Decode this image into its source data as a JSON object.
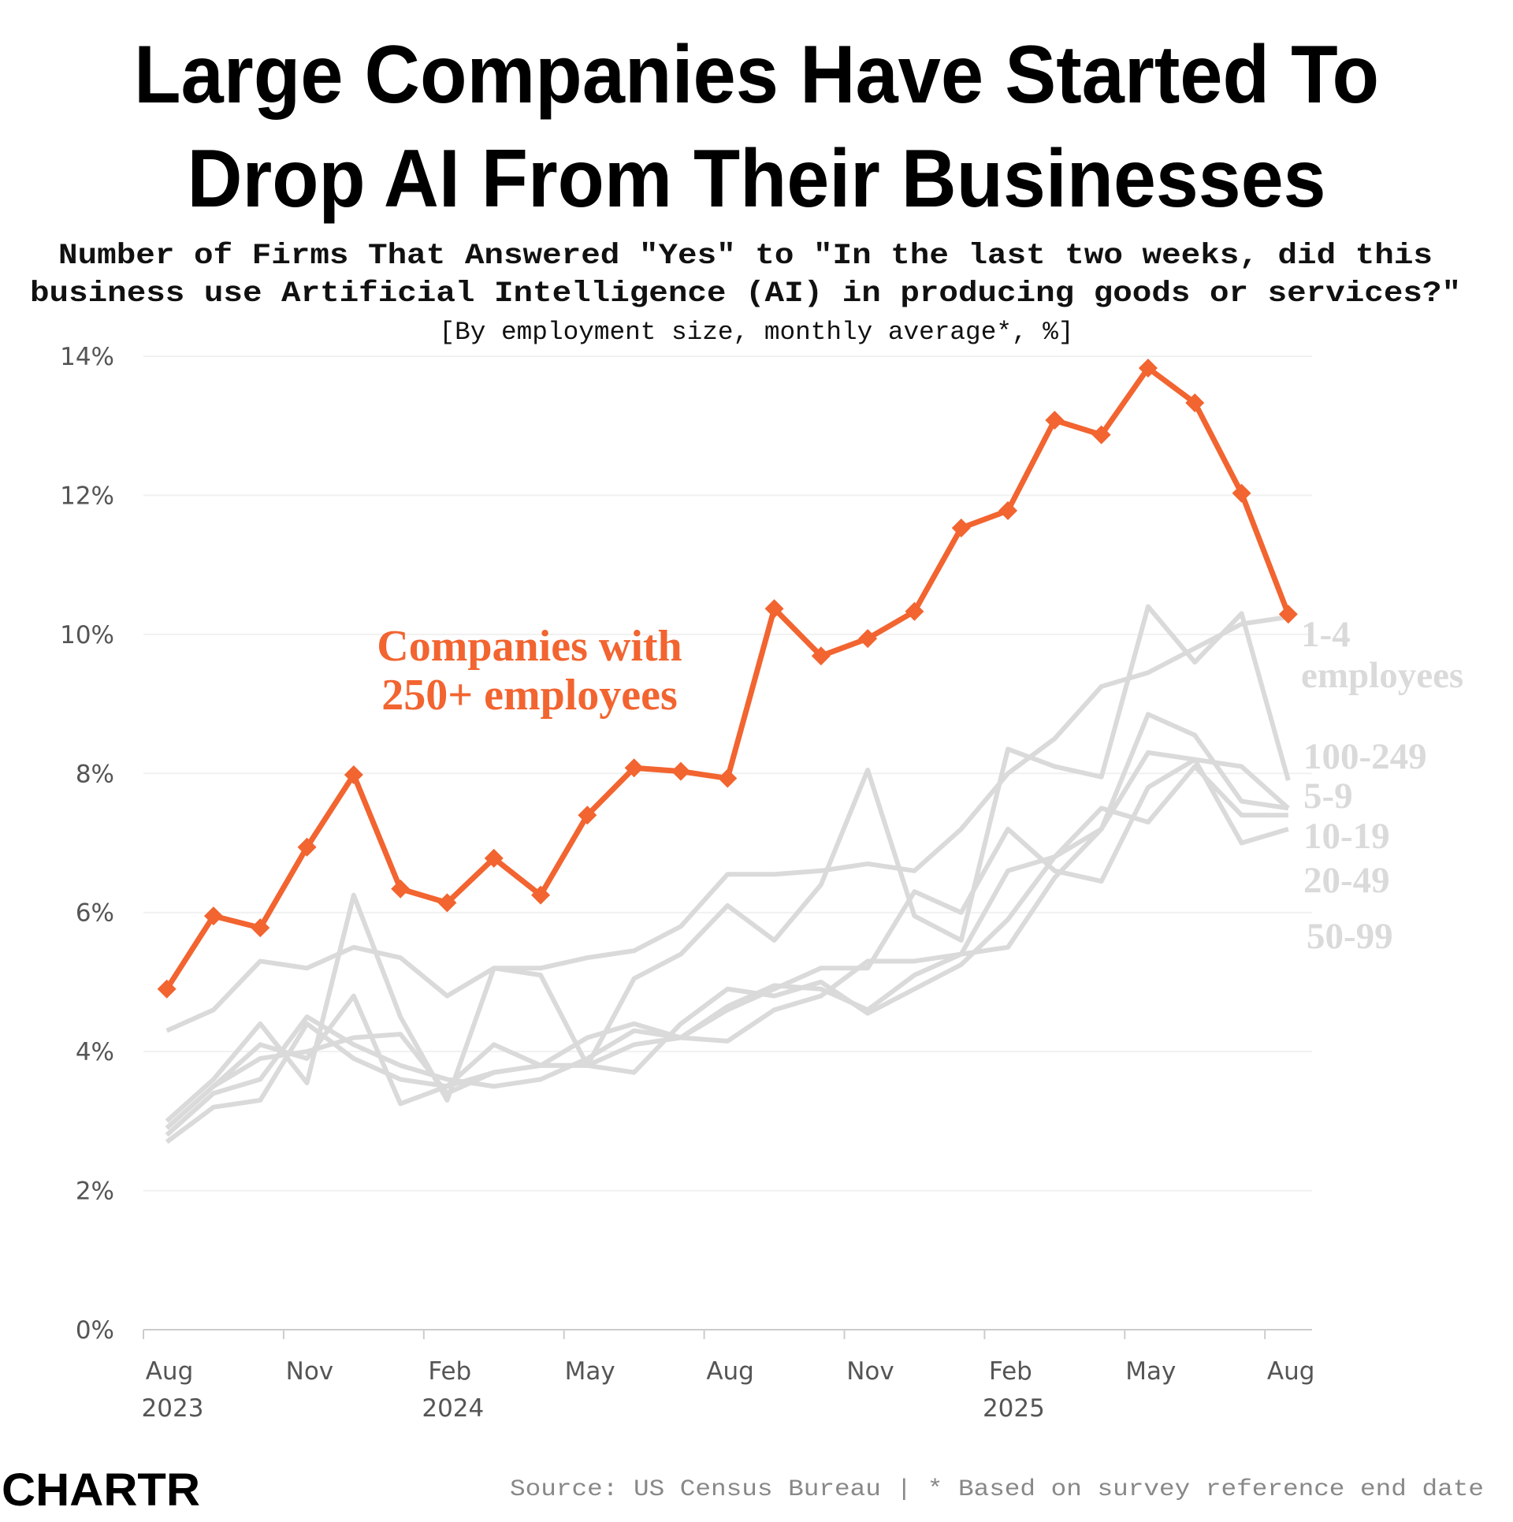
{
  "chart_data": {
    "type": "line",
    "title": [
      "Large Companies Have Started To",
      "Drop AI From Their Businesses"
    ],
    "subtitle": [
      "Number of Firms That Answered \"Yes\" to \"In the last two weeks, did this",
      "business use Artificial Intelligence (AI) in producing goods or services?\""
    ],
    "note": "[By employment size, monthly average*, %]",
    "source": "Source: US Census Bureau | * Based on survey reference end date",
    "logo": "CHARTR",
    "x": [
      "2023-08",
      "2023-09",
      "2023-10",
      "2023-11",
      "2023-12",
      "2024-01",
      "2024-02",
      "2024-03",
      "2024-04",
      "2024-05",
      "2024-06",
      "2024-07",
      "2024-08",
      "2024-09",
      "2024-10",
      "2024-11",
      "2024-12",
      "2025-01",
      "2025-02",
      "2025-03",
      "2025-04",
      "2025-05",
      "2025-06",
      "2025-07",
      "2025-08"
    ],
    "xticks": [
      {
        "value": "2023-08",
        "label": "Aug"
      },
      {
        "value": "2023-11",
        "label": "Nov"
      },
      {
        "value": "2024-02",
        "label": "Feb"
      },
      {
        "value": "2024-05",
        "label": "May"
      },
      {
        "value": "2024-08",
        "label": "Aug"
      },
      {
        "value": "2024-11",
        "label": "Nov"
      },
      {
        "value": "2025-02",
        "label": "Feb"
      },
      {
        "value": "2025-05",
        "label": "May"
      },
      {
        "value": "2025-08",
        "label": "Aug"
      }
    ],
    "xtick_years": [
      {
        "value": "2023-08",
        "label": "2023"
      },
      {
        "value": "2024-02",
        "label": "2024"
      },
      {
        "value": "2025-02",
        "label": "2025"
      }
    ],
    "ylim": [
      0,
      14
    ],
    "yticks": [
      {
        "value": 0,
        "label": "0%"
      },
      {
        "value": 2,
        "label": "2%"
      },
      {
        "value": 4,
        "label": "4%"
      },
      {
        "value": 6,
        "label": "6%"
      },
      {
        "value": 8,
        "label": "8%"
      },
      {
        "value": 10,
        "label": "10%"
      },
      {
        "value": 12,
        "label": "12%"
      },
      {
        "value": 14,
        "label": "14%"
      }
    ],
    "grid": true,
    "series": [
      {
        "name": "Companies with 250+ employees",
        "color": "#f26430",
        "marker": "diamond",
        "values": [
          4.9,
          5.95,
          5.78,
          6.94,
          7.98,
          6.34,
          6.14,
          6.78,
          6.25,
          7.4,
          8.08,
          8.03,
          7.93,
          10.37,
          9.69,
          9.94,
          10.33,
          11.53,
          11.78,
          13.08,
          12.87,
          13.83,
          13.33,
          12.03,
          10.29
        ]
      },
      {
        "name": "1-4 employees",
        "color": "#dadada",
        "values": [
          4.3,
          4.6,
          5.3,
          5.2,
          5.5,
          5.35,
          4.8,
          5.2,
          5.2,
          5.35,
          5.45,
          5.8,
          6.55,
          6.55,
          6.6,
          6.7,
          6.6,
          7.2,
          8.0,
          8.5,
          9.25,
          9.45,
          9.8,
          10.15,
          10.25
        ]
      },
      {
        "name": "100-249",
        "color": "#dadada",
        "values": [
          3.0,
          3.6,
          4.4,
          3.55,
          6.25,
          4.5,
          3.3,
          5.2,
          5.1,
          3.8,
          5.05,
          5.4,
          6.1,
          5.6,
          6.4,
          8.05,
          5.95,
          5.6,
          8.35,
          8.1,
          7.95,
          10.4,
          9.6,
          10.3,
          7.9
        ]
      },
      {
        "name": "5-9",
        "color": "#dadada",
        "values": [
          2.9,
          3.5,
          3.9,
          4.0,
          4.2,
          4.25,
          3.4,
          3.7,
          3.8,
          4.2,
          4.4,
          4.2,
          4.65,
          4.95,
          4.9,
          4.6,
          5.1,
          5.4,
          6.6,
          6.8,
          7.2,
          8.85,
          8.55,
          7.6,
          7.5
        ]
      },
      {
        "name": "10-19",
        "color": "#dadada",
        "values": [
          2.8,
          3.4,
          3.6,
          4.5,
          4.1,
          3.8,
          3.6,
          3.5,
          3.6,
          3.9,
          4.3,
          4.2,
          4.15,
          4.6,
          4.8,
          5.3,
          5.3,
          5.4,
          5.5,
          6.5,
          7.2,
          8.3,
          8.2,
          7.0,
          7.2
        ]
      },
      {
        "name": "20-49",
        "color": "#dadada",
        "values": [
          2.7,
          3.2,
          3.3,
          4.4,
          3.9,
          3.6,
          3.5,
          4.1,
          3.8,
          3.8,
          3.7,
          4.4,
          4.9,
          4.8,
          5.0,
          4.55,
          4.9,
          5.25,
          5.9,
          6.8,
          7.5,
          7.3,
          8.1,
          7.4,
          7.4
        ]
      },
      {
        "name": "50-99",
        "color": "#dadada",
        "values": [
          2.9,
          3.5,
          4.1,
          3.9,
          4.8,
          3.25,
          3.5,
          3.7,
          3.8,
          3.8,
          4.1,
          4.2,
          4.6,
          4.9,
          5.2,
          5.2,
          6.3,
          6.0,
          7.2,
          6.6,
          6.45,
          7.8,
          8.2,
          8.1,
          7.5
        ]
      }
    ]
  }
}
